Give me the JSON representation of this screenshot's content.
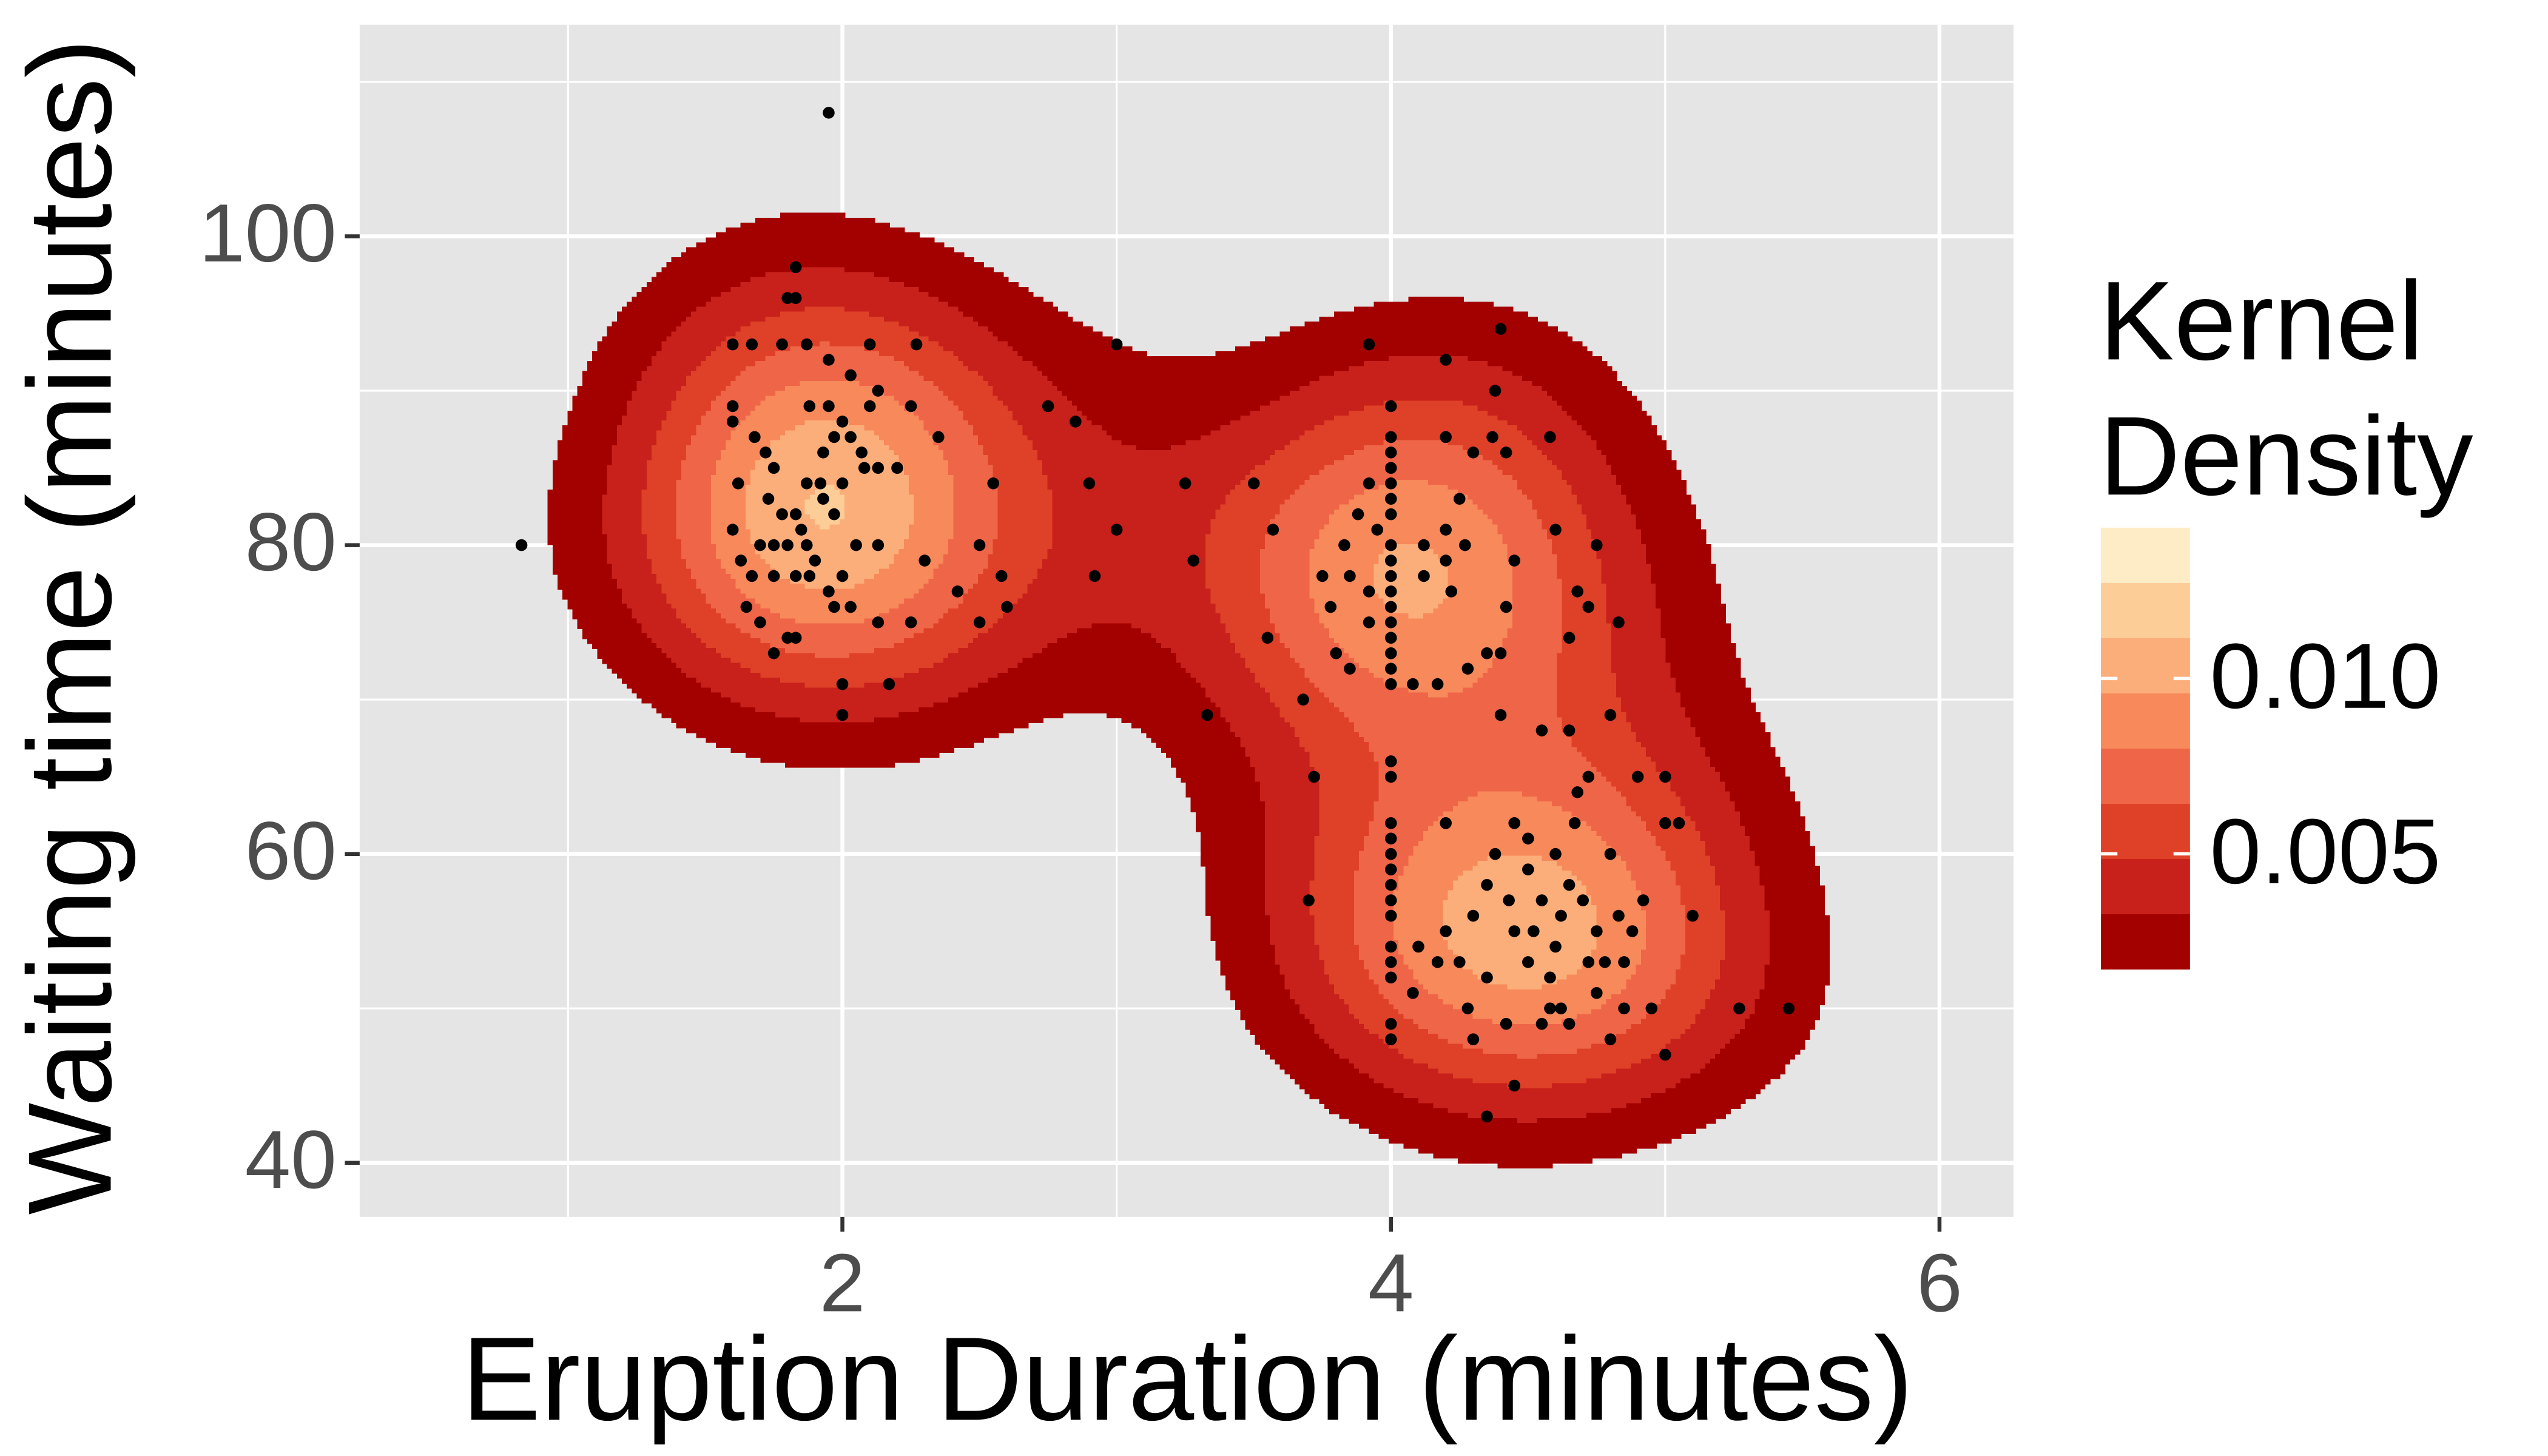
{
  "chart_data": {
    "type": "scatter",
    "xlabel": "Eruption Duration (minutes)",
    "ylabel": "Waiting time (minutes)",
    "legend_title": [
      "Kernel",
      "Density"
    ],
    "xlim": [
      0.24,
      6.27
    ],
    "ylim": [
      36.5,
      113.7
    ],
    "xticks": [
      2,
      4,
      6
    ],
    "yticks": [
      40,
      60,
      80,
      100
    ],
    "xminor": [
      1,
      3,
      5
    ],
    "yminor": [
      50,
      70,
      90,
      110
    ],
    "grid": true,
    "point_color": "#000000",
    "colorbar_lim": [
      0.0017,
      0.0143
    ],
    "colorbar_ticks": [
      0.005,
      {
        "value": 0.01,
        "label": "0.010"
      }
    ],
    "colors": [
      "#a30000",
      "#c8201a",
      "#df4128",
      "#ef6548",
      "#f7895a",
      "#fcae7a",
      "#fdcd98",
      "#feecc6"
    ],
    "x": [
      1.95,
      0.83,
      3.0,
      4.4,
      5.45,
      5.27,
      1.6,
      1.67,
      1.8,
      1.83,
      1.83,
      1.78,
      1.87,
      1.95,
      2.03,
      2.13,
      2.1,
      2.27,
      1.6,
      1.6,
      1.72,
      1.75,
      1.88,
      1.95,
      1.97,
      2.0,
      2.03,
      2.1,
      1.93,
      2.07,
      2.08,
      2.13,
      2.2,
      1.73,
      1.78,
      1.83,
      1.85,
      1.87,
      1.9,
      1.93,
      1.97,
      2.0,
      1.92,
      1.87,
      1.6,
      1.63,
      1.7,
      1.75,
      1.8,
      1.83,
      1.88,
      1.95,
      2.0,
      2.03,
      1.97,
      1.67,
      1.75,
      1.62,
      1.65,
      1.7,
      1.8,
      1.83,
      1.75,
      2.0,
      2.0,
      2.17,
      2.13,
      2.25,
      2.3,
      2.42,
      2.5,
      2.5,
      2.58,
      2.6,
      2.55,
      2.35,
      2.25,
      2.13,
      2.05,
      1.68,
      2.75,
      2.85,
      2.9,
      3.0,
      2.92,
      3.25,
      3.28,
      3.33,
      3.5,
      3.57,
      3.55,
      3.68,
      3.7,
      3.72,
      3.92,
      4.0,
      4.0,
      4.0,
      4.0,
      4.0,
      4.0,
      4.0,
      4.0,
      4.0,
      4.0,
      4.0,
      4.0,
      4.0,
      4.0,
      4.0,
      4.0,
      4.0,
      3.88,
      3.92,
      3.95,
      3.83,
      3.85,
      3.75,
      3.78,
      3.8,
      3.85,
      3.92,
      3.92,
      4.08,
      4.17,
      4.12,
      4.12,
      4.2,
      4.22,
      4.2,
      4.27,
      4.25,
      4.35,
      4.28,
      4.4,
      4.42,
      4.45,
      4.42,
      4.37,
      4.38,
      4.2,
      4.2,
      4.3,
      4.6,
      4.58,
      4.68,
      4.65,
      4.83,
      4.75,
      4.72,
      4.0,
      4.0,
      4.0,
      4.0,
      4.0,
      4.0,
      4.0,
      4.0,
      4.0,
      4.0,
      4.0,
      4.0,
      4.0,
      4.0,
      4.08,
      4.1,
      4.17,
      4.25,
      4.28,
      4.35,
      4.35,
      4.38,
      4.43,
      4.45,
      4.45,
      4.5,
      4.5,
      4.52,
      4.55,
      4.58,
      4.58,
      4.6,
      4.6,
      4.62,
      4.65,
      4.67,
      4.68,
      4.7,
      4.72,
      4.75,
      4.75,
      4.8,
      4.83,
      4.85,
      4.9,
      4.92,
      5.0,
      5.0,
      5.05,
      5.1,
      5.0,
      4.8,
      4.62,
      4.55,
      4.42,
      4.3,
      4.2,
      4.45,
      4.35,
      4.72,
      4.65,
      4.55,
      4.4,
      4.8,
      4.65,
      4.88,
      4.95,
      4.3,
      4.2,
      4.5,
      4.78,
      4.85
    ],
    "values": [
      108,
      80,
      93,
      94,
      50,
      50,
      93,
      93,
      96,
      96,
      98,
      93,
      93,
      92,
      91,
      90,
      93,
      93,
      89,
      88,
      86,
      85,
      89,
      89,
      87,
      88,
      87,
      89,
      86,
      86,
      85,
      85,
      85,
      83,
      82,
      82,
      81,
      80,
      79,
      83,
      82,
      84,
      84,
      84,
      81,
      79,
      80,
      80,
      80,
      78,
      78,
      77,
      78,
      76,
      76,
      78,
      78,
      84,
      76,
      75,
      74,
      74,
      73,
      71,
      69,
      71,
      75,
      75,
      79,
      77,
      75,
      80,
      78,
      76,
      84,
      87,
      89,
      80,
      80,
      87,
      89,
      88,
      84,
      81,
      78,
      84,
      79,
      69,
      84,
      81,
      74,
      70,
      57,
      65,
      93,
      89,
      87,
      86,
      85,
      84,
      83,
      82,
      80,
      79,
      78,
      77,
      76,
      75,
      74,
      73,
      72,
      71,
      82,
      84,
      81,
      80,
      78,
      78,
      76,
      73,
      72,
      77,
      75,
      71,
      71,
      78,
      80,
      79,
      77,
      81,
      80,
      83,
      73,
      72,
      73,
      76,
      79,
      86,
      87,
      90,
      92,
      87,
      86,
      81,
      87,
      77,
      74,
      75,
      80,
      76,
      66,
      65,
      62,
      61,
      60,
      59,
      58,
      57,
      56,
      54,
      53,
      52,
      49,
      48,
      51,
      54,
      53,
      53,
      50,
      52,
      58,
      60,
      57,
      55,
      62,
      59,
      61,
      55,
      57,
      50,
      52,
      54,
      60,
      56,
      58,
      62,
      64,
      57,
      53,
      51,
      55,
      60,
      56,
      53,
      65,
      57,
      65,
      62,
      62,
      56,
      47,
      48,
      50,
      49,
      49,
      48,
      55,
      45,
      43,
      65,
      68,
      68,
      69,
      69,
      49,
      55,
      50,
      56,
      62,
      53,
      53,
      50
    ]
  }
}
